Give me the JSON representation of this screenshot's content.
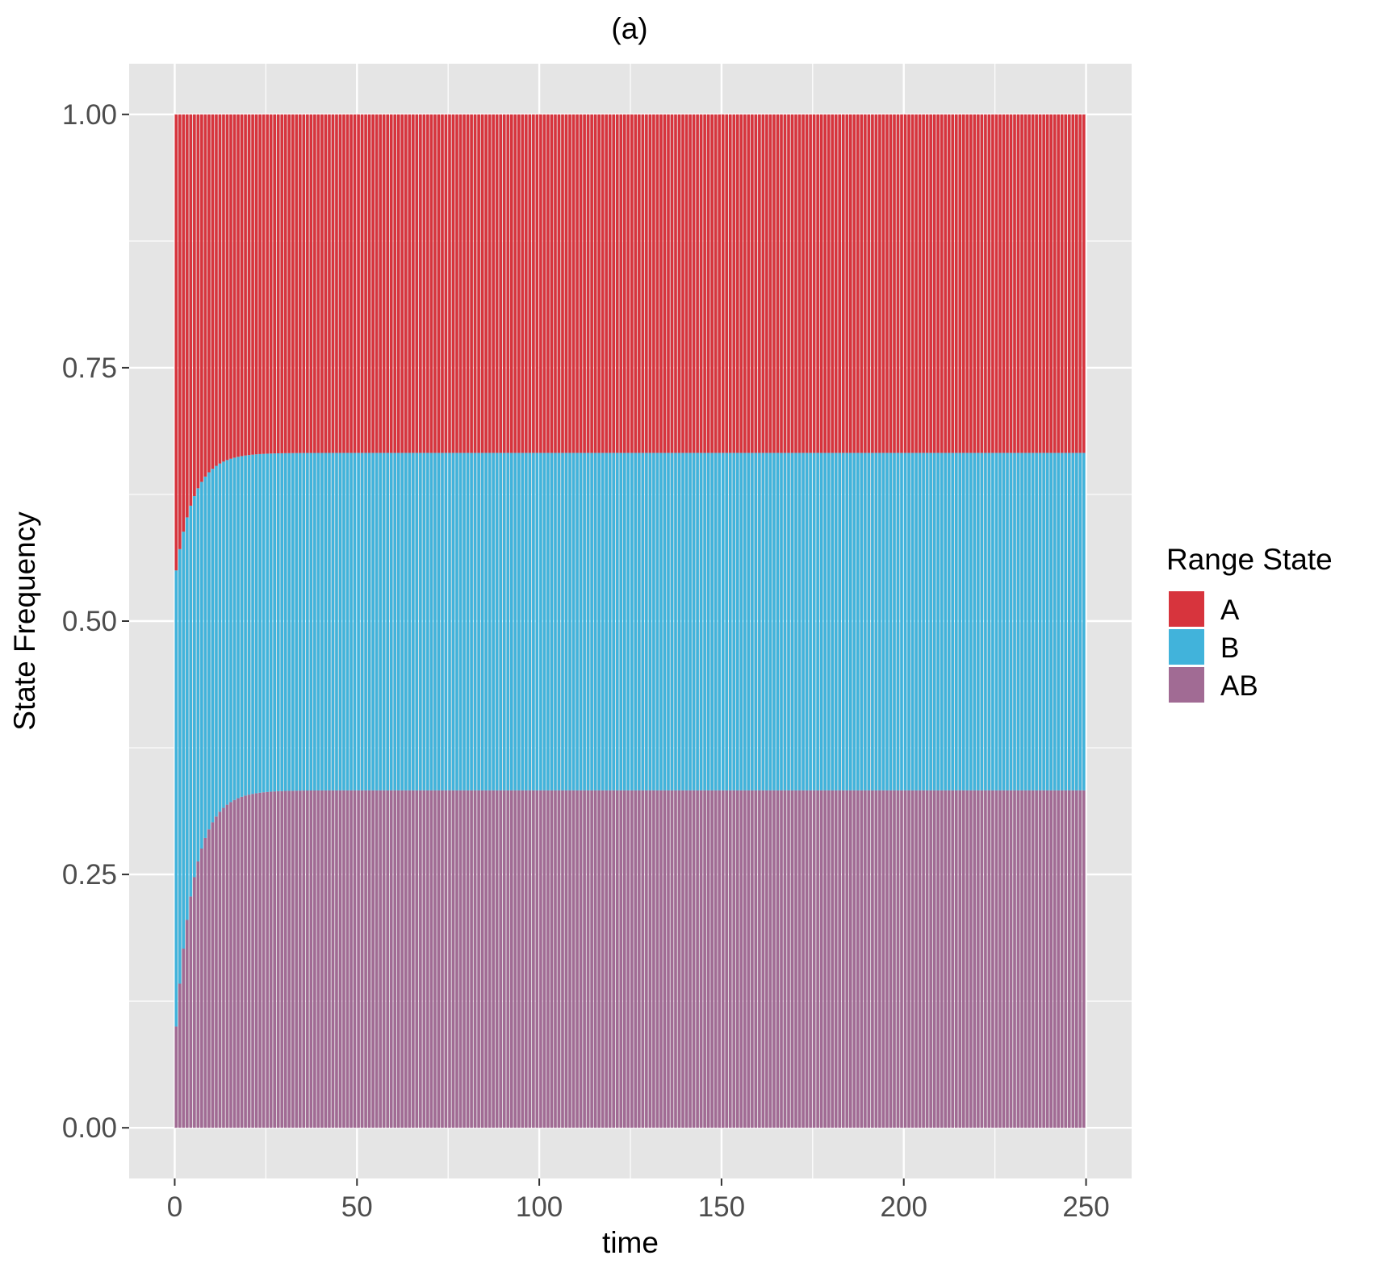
{
  "chart_data": {
    "type": "bar",
    "stacked": true,
    "title": "(a)",
    "xlabel": "time",
    "ylabel": "State Frequency",
    "xlim": [
      -12.5,
      262.5
    ],
    "ylim": [
      -0.05,
      1.05
    ],
    "xticks": [
      0,
      50,
      100,
      150,
      200,
      250
    ],
    "xtick_labels": [
      "0",
      "50",
      "100",
      "150",
      "200",
      "250"
    ],
    "yticks": [
      0,
      0.25,
      0.5,
      0.75,
      1.0
    ],
    "ytick_labels": [
      "0.00",
      "0.25",
      "0.50",
      "0.75",
      "1.00"
    ],
    "grid": true,
    "legend": {
      "title": "Range State",
      "position": "right",
      "entries": [
        {
          "label": "A",
          "color": "#d7343d"
        },
        {
          "label": "B",
          "color": "#41b3db"
        },
        {
          "label": "AB",
          "color": "#a16b94"
        }
      ]
    },
    "x_range": [
      0,
      250
    ],
    "bar_count": 250,
    "series_model": "cumulative boundaries: AB = 0.333*(1-exp(-t/5)) + 0.1*exp(-t/5); AB+B = 0.666 - 0.116*exp(-t/5); A fills to 1.0",
    "series": [
      {
        "name": "A",
        "values_start": 0.45,
        "values_end": 0.334
      },
      {
        "name": "B",
        "values_start": 0.45,
        "values_end": 0.333
      },
      {
        "name": "AB",
        "values_start": 0.1,
        "values_end": 0.333
      }
    ],
    "colors": {
      "A": "#d7343d",
      "B": "#41b3db",
      "AB": "#a16b94",
      "panel": "#e5e5e5",
      "grid": "#ffffff"
    }
  }
}
